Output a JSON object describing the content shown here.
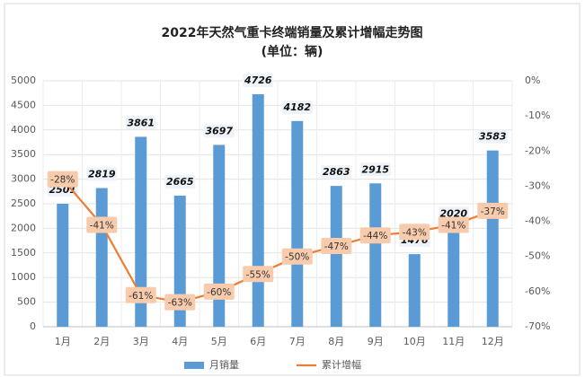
{
  "chart_data": {
    "type": "bar-line",
    "title": "2022年天然气重卡终端销量及累计增幅走势图",
    "subtitle": "(单位：辆)",
    "categories": [
      "1月",
      "2月",
      "3月",
      "4月",
      "5月",
      "6月",
      "7月",
      "8月",
      "9月",
      "10月",
      "11月",
      "12月"
    ],
    "series": [
      {
        "name": "月销量",
        "color": "#5b9bd5",
        "type": "bar",
        "values": [
          2501,
          2819,
          3861,
          2665,
          3697,
          4726,
          4182,
          2863,
          2915,
          1476,
          2020,
          3583
        ]
      },
      {
        "name": "累计增幅",
        "color": "#ed7d31",
        "type": "line",
        "axis": "y2",
        "values": [
          -28,
          -41,
          -61,
          -63,
          -60,
          -55,
          -50,
          -47,
          -44,
          -43,
          -41,
          -37
        ],
        "value_labels": [
          "-28%",
          "-41%",
          "-61%",
          "-63%",
          "-60%",
          "-55%",
          "-50%",
          "-47%",
          "-44%",
          "-43%",
          "-41%",
          "-37%"
        ]
      }
    ],
    "ylim": [
      0,
      5000
    ],
    "yticks": [
      0,
      500,
      1000,
      1500,
      2000,
      2500,
      3000,
      3500,
      4000,
      4500,
      5000
    ],
    "y2lim": [
      -70,
      0
    ],
    "y2ticks": [
      {
        "value": 0,
        "label": "0%"
      },
      {
        "value": -10,
        "label": "-10%"
      },
      {
        "value": -20,
        "label": "-20%"
      },
      {
        "value": -30,
        "label": "-30%"
      },
      {
        "value": -40,
        "label": "-40%"
      },
      {
        "value": -50,
        "label": "-50%"
      },
      {
        "value": -60,
        "label": "-60%"
      },
      {
        "value": -70,
        "label": "-70%"
      }
    ],
    "grid": true,
    "legend": "bottom"
  }
}
